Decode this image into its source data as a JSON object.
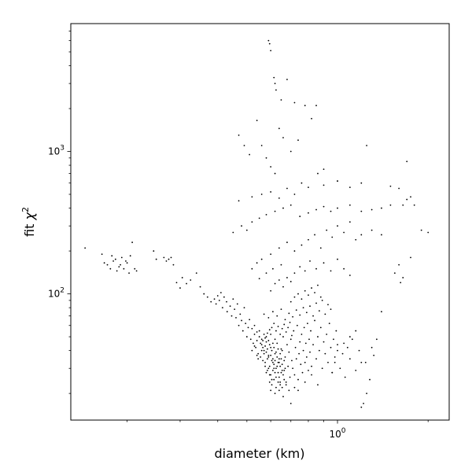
{
  "chart_data": {
    "type": "scatter",
    "title": "",
    "xlabel": "diameter (km)",
    "ylabel_prefix": "fit ",
    "ylabel_symbol": "χ",
    "ylabel_sup": "2",
    "xscale": "log",
    "yscale": "log",
    "xlim": [
      0.13,
      2.35
    ],
    "ylim": [
      13,
      7900
    ],
    "grid": false,
    "legend": "none",
    "marker_color": "#000000",
    "x_tick_labels": [
      {
        "value": 1.0,
        "base": "10",
        "exp": "0"
      }
    ],
    "y_tick_labels": [
      {
        "value": 100,
        "base": "10",
        "exp": "2"
      },
      {
        "value": 1000,
        "base": "10",
        "exp": "3"
      }
    ],
    "x_minor_ticks": [
      0.2,
      0.3,
      0.4,
      0.5,
      0.6,
      0.7,
      0.8,
      0.9,
      2.0
    ],
    "y_minor_ticks": [
      20,
      30,
      40,
      50,
      60,
      70,
      80,
      90,
      200,
      300,
      400,
      500,
      600,
      700,
      800,
      900,
      2000,
      3000,
      4000,
      5000,
      6000,
      7000
    ],
    "points": [
      [
        0.145,
        210
      ],
      [
        0.165,
        190
      ],
      [
        0.168,
        165
      ],
      [
        0.172,
        160
      ],
      [
        0.176,
        150
      ],
      [
        0.178,
        185
      ],
      [
        0.18,
        170
      ],
      [
        0.183,
        175
      ],
      [
        0.185,
        145
      ],
      [
        0.188,
        155
      ],
      [
        0.19,
        160
      ],
      [
        0.192,
        180
      ],
      [
        0.195,
        150
      ],
      [
        0.198,
        170
      ],
      [
        0.2,
        165
      ],
      [
        0.203,
        140
      ],
      [
        0.205,
        185
      ],
      [
        0.208,
        230
      ],
      [
        0.212,
        150
      ],
      [
        0.215,
        145
      ],
      [
        0.245,
        200
      ],
      [
        0.25,
        175
      ],
      [
        0.265,
        180
      ],
      [
        0.27,
        170
      ],
      [
        0.275,
        175
      ],
      [
        0.28,
        180
      ],
      [
        0.285,
        160
      ],
      [
        0.292,
        120
      ],
      [
        0.3,
        110
      ],
      [
        0.305,
        130
      ],
      [
        0.315,
        118
      ],
      [
        0.325,
        125
      ],
      [
        0.34,
        140
      ],
      [
        0.35,
        112
      ],
      [
        0.36,
        100
      ],
      [
        0.37,
        95
      ],
      [
        0.38,
        88
      ],
      [
        0.39,
        92
      ],
      [
        0.395,
        85
      ],
      [
        0.4,
        97
      ],
      [
        0.405,
        90
      ],
      [
        0.41,
        102
      ],
      [
        0.415,
        80
      ],
      [
        0.42,
        95
      ],
      [
        0.428,
        88
      ],
      [
        0.43,
        75
      ],
      [
        0.44,
        82
      ],
      [
        0.445,
        70
      ],
      [
        0.45,
        92
      ],
      [
        0.455,
        78
      ],
      [
        0.46,
        68
      ],
      [
        0.465,
        85
      ],
      [
        0.47,
        60
      ],
      [
        0.475,
        72
      ],
      [
        0.48,
        65
      ],
      [
        0.485,
        55
      ],
      [
        0.49,
        80
      ],
      [
        0.495,
        62
      ],
      [
        0.5,
        50
      ],
      [
        0.505,
        58
      ],
      [
        0.51,
        66
      ],
      [
        0.515,
        48
      ],
      [
        0.52,
        57
      ],
      [
        0.525,
        45
      ],
      [
        0.53,
        52
      ],
      [
        0.535,
        42
      ],
      [
        0.54,
        47
      ],
      [
        0.545,
        38
      ],
      [
        0.55,
        55
      ],
      [
        0.555,
        36
      ],
      [
        0.56,
        44
      ],
      [
        0.565,
        34
      ],
      [
        0.57,
        40
      ],
      [
        0.575,
        31
      ],
      [
        0.58,
        46
      ],
      [
        0.585,
        29
      ],
      [
        0.59,
        37
      ],
      [
        0.595,
        27
      ],
      [
        0.6,
        42
      ],
      [
        0.605,
        25
      ],
      [
        0.61,
        33
      ],
      [
        0.615,
        30
      ],
      [
        0.62,
        38
      ],
      [
        0.625,
        26
      ],
      [
        0.63,
        45
      ],
      [
        0.635,
        28
      ],
      [
        0.64,
        35
      ],
      [
        0.645,
        24
      ],
      [
        0.65,
        41
      ],
      [
        0.655,
        32
      ],
      [
        0.66,
        50
      ],
      [
        0.665,
        29
      ],
      [
        0.67,
        36
      ],
      [
        0.675,
        23
      ],
      [
        0.68,
        44
      ],
      [
        0.685,
        31
      ],
      [
        0.69,
        39
      ],
      [
        0.695,
        26
      ],
      [
        0.7,
        48
      ],
      [
        0.705,
        34
      ],
      [
        0.71,
        30
      ],
      [
        0.715,
        55
      ],
      [
        0.72,
        27
      ],
      [
        0.725,
        42
      ],
      [
        0.73,
        35
      ],
      [
        0.735,
        60
      ],
      [
        0.74,
        25
      ],
      [
        0.745,
        38
      ],
      [
        0.75,
        46
      ],
      [
        0.755,
        32
      ],
      [
        0.76,
        52
      ],
      [
        0.765,
        28
      ],
      [
        0.77,
        40
      ],
      [
        0.775,
        58
      ],
      [
        0.78,
        33
      ],
      [
        0.785,
        45
      ],
      [
        0.79,
        36
      ],
      [
        0.795,
        62
      ],
      [
        0.8,
        29
      ],
      [
        0.805,
        48
      ],
      [
        0.81,
        39
      ],
      [
        0.815,
        55
      ],
      [
        0.82,
        31
      ],
      [
        0.83,
        44
      ],
      [
        0.84,
        65
      ],
      [
        0.85,
        35
      ],
      [
        0.86,
        50
      ],
      [
        0.87,
        40
      ],
      [
        0.88,
        58
      ],
      [
        0.89,
        30
      ],
      [
        0.9,
        46
      ],
      [
        0.91,
        38
      ],
      [
        0.92,
        52
      ],
      [
        0.93,
        33
      ],
      [
        0.94,
        62
      ],
      [
        0.95,
        42
      ],
      [
        0.96,
        28
      ],
      [
        0.97,
        48
      ],
      [
        0.98,
        36
      ],
      [
        0.99,
        55
      ],
      [
        1.0,
        44
      ],
      [
        1.02,
        30
      ],
      [
        1.04,
        38
      ],
      [
        1.06,
        26
      ],
      [
        1.08,
        42
      ],
      [
        1.1,
        35
      ],
      [
        1.12,
        48
      ],
      [
        1.15,
        29
      ],
      [
        1.18,
        40
      ],
      [
        1.2,
        33
      ],
      [
        0.53,
        60
      ],
      [
        0.54,
        54
      ],
      [
        0.55,
        50
      ],
      [
        0.56,
        48
      ],
      [
        0.57,
        52
      ],
      [
        0.58,
        50
      ],
      [
        0.59,
        47
      ],
      [
        0.6,
        52
      ],
      [
        0.61,
        45
      ],
      [
        0.62,
        48
      ],
      [
        0.56,
        40
      ],
      [
        0.565,
        42
      ],
      [
        0.57,
        38
      ],
      [
        0.575,
        43
      ],
      [
        0.58,
        39
      ],
      [
        0.585,
        41
      ],
      [
        0.59,
        36
      ],
      [
        0.595,
        44
      ],
      [
        0.6,
        37
      ],
      [
        0.605,
        40
      ],
      [
        0.61,
        35
      ],
      [
        0.615,
        42
      ],
      [
        0.62,
        34
      ],
      [
        0.625,
        39
      ],
      [
        0.63,
        36
      ],
      [
        0.635,
        41
      ],
      [
        0.64,
        33
      ],
      [
        0.645,
        38
      ],
      [
        0.65,
        35
      ],
      [
        0.655,
        40
      ],
      [
        0.575,
        33
      ],
      [
        0.585,
        35
      ],
      [
        0.595,
        31
      ],
      [
        0.605,
        34
      ],
      [
        0.615,
        32
      ],
      [
        0.625,
        30
      ],
      [
        0.635,
        33
      ],
      [
        0.645,
        31
      ],
      [
        0.655,
        29
      ],
      [
        0.665,
        34
      ],
      [
        0.58,
        28
      ],
      [
        0.59,
        30
      ],
      [
        0.6,
        27
      ],
      [
        0.61,
        29
      ],
      [
        0.62,
        28
      ],
      [
        0.63,
        31
      ],
      [
        0.64,
        26
      ],
      [
        0.65,
        28
      ],
      [
        0.66,
        27
      ],
      [
        0.67,
        30
      ],
      [
        0.595,
        24
      ],
      [
        0.605,
        23
      ],
      [
        0.615,
        25
      ],
      [
        0.625,
        22
      ],
      [
        0.635,
        24
      ],
      [
        0.645,
        23
      ],
      [
        0.655,
        22
      ],
      [
        0.665,
        25
      ],
      [
        0.675,
        24
      ],
      [
        0.69,
        21
      ],
      [
        0.6,
        21
      ],
      [
        0.62,
        20
      ],
      [
        0.64,
        21
      ],
      [
        0.66,
        19
      ],
      [
        0.7,
        17
      ],
      [
        0.72,
        22
      ],
      [
        0.74,
        21
      ],
      [
        0.78,
        24
      ],
      [
        0.82,
        27
      ],
      [
        0.86,
        23
      ],
      [
        0.52,
        40
      ],
      [
        0.53,
        43
      ],
      [
        0.54,
        37
      ],
      [
        0.545,
        35
      ],
      [
        0.555,
        45
      ],
      [
        0.565,
        47
      ],
      [
        0.575,
        49
      ],
      [
        0.585,
        53
      ],
      [
        0.595,
        56
      ],
      [
        0.605,
        58
      ],
      [
        0.615,
        62
      ],
      [
        0.625,
        55
      ],
      [
        0.635,
        59
      ],
      [
        0.645,
        52
      ],
      [
        0.655,
        57
      ],
      [
        0.665,
        61
      ],
      [
        0.675,
        54
      ],
      [
        0.685,
        58
      ],
      [
        0.695,
        63
      ],
      [
        0.705,
        51
      ],
      [
        0.57,
        72
      ],
      [
        0.59,
        68
      ],
      [
        0.61,
        75
      ],
      [
        0.63,
        70
      ],
      [
        0.65,
        78
      ],
      [
        0.67,
        66
      ],
      [
        0.69,
        73
      ],
      [
        0.71,
        69
      ],
      [
        0.73,
        77
      ],
      [
        0.75,
        71
      ],
      [
        0.77,
        80
      ],
      [
        0.79,
        74
      ],
      [
        0.81,
        82
      ],
      [
        0.83,
        70
      ],
      [
        0.85,
        86
      ],
      [
        0.87,
        76
      ],
      [
        0.89,
        90
      ],
      [
        0.91,
        72
      ],
      [
        0.93,
        84
      ],
      [
        0.95,
        78
      ],
      [
        0.7,
        88
      ],
      [
        0.72,
        95
      ],
      [
        0.74,
        100
      ],
      [
        0.76,
        92
      ],
      [
        0.78,
        105
      ],
      [
        0.8,
        98
      ],
      [
        0.82,
        110
      ],
      [
        0.84,
        102
      ],
      [
        0.86,
        115
      ],
      [
        0.88,
        95
      ],
      [
        0.6,
        105
      ],
      [
        0.62,
        118
      ],
      [
        0.64,
        125
      ],
      [
        0.66,
        112
      ],
      [
        0.68,
        130
      ],
      [
        0.7,
        122
      ],
      [
        0.55,
        128
      ],
      [
        0.58,
        140
      ],
      [
        0.61,
        150
      ],
      [
        0.65,
        160
      ],
      [
        0.72,
        140
      ],
      [
        0.75,
        155
      ],
      [
        0.78,
        145
      ],
      [
        0.81,
        170
      ],
      [
        0.85,
        150
      ],
      [
        0.9,
        165
      ],
      [
        0.95,
        145
      ],
      [
        1.0,
        175
      ],
      [
        1.05,
        150
      ],
      [
        1.1,
        135
      ],
      [
        0.52,
        150
      ],
      [
        0.54,
        165
      ],
      [
        0.56,
        175
      ],
      [
        0.6,
        190
      ],
      [
        0.64,
        210
      ],
      [
        0.68,
        230
      ],
      [
        0.72,
        200
      ],
      [
        0.76,
        220
      ],
      [
        0.8,
        240
      ],
      [
        0.84,
        260
      ],
      [
        0.88,
        210
      ],
      [
        0.92,
        280
      ],
      [
        0.96,
        250
      ],
      [
        1.0,
        300
      ],
      [
        1.05,
        270
      ],
      [
        1.1,
        320
      ],
      [
        1.15,
        240
      ],
      [
        1.2,
        260
      ],
      [
        1.3,
        280
      ],
      [
        1.4,
        260
      ],
      [
        0.45,
        270
      ],
      [
        0.48,
        300
      ],
      [
        0.5,
        280
      ],
      [
        0.52,
        320
      ],
      [
        0.55,
        340
      ],
      [
        0.58,
        360
      ],
      [
        0.62,
        380
      ],
      [
        0.66,
        400
      ],
      [
        0.7,
        420
      ],
      [
        0.75,
        350
      ],
      [
        0.8,
        370
      ],
      [
        0.85,
        390
      ],
      [
        0.9,
        410
      ],
      [
        0.95,
        380
      ],
      [
        1.0,
        400
      ],
      [
        1.1,
        420
      ],
      [
        1.2,
        380
      ],
      [
        1.3,
        390
      ],
      [
        1.4,
        400
      ],
      [
        1.5,
        420
      ],
      [
        0.47,
        450
      ],
      [
        0.52,
        480
      ],
      [
        0.56,
        500
      ],
      [
        0.6,
        520
      ],
      [
        0.64,
        470
      ],
      [
        0.68,
        550
      ],
      [
        0.72,
        500
      ],
      [
        0.76,
        600
      ],
      [
        0.8,
        560
      ],
      [
        0.9,
        580
      ],
      [
        1.0,
        620
      ],
      [
        1.1,
        560
      ],
      [
        1.2,
        600
      ],
      [
        1.5,
        570
      ],
      [
        1.6,
        550
      ],
      [
        1.7,
        460
      ],
      [
        1.75,
        480
      ],
      [
        1.8,
        420
      ],
      [
        1.9,
        280
      ],
      [
        2.0,
        270
      ],
      [
        0.47,
        1300
      ],
      [
        0.49,
        1100
      ],
      [
        0.51,
        950
      ],
      [
        0.54,
        1650
      ],
      [
        0.56,
        1100
      ],
      [
        0.58,
        900
      ],
      [
        0.6,
        780
      ],
      [
        0.62,
        700
      ],
      [
        0.64,
        1450
      ],
      [
        0.66,
        1250
      ],
      [
        0.7,
        1000
      ],
      [
        0.74,
        1200
      ],
      [
        0.78,
        2100
      ],
      [
        0.82,
        1700
      ],
      [
        0.86,
        700
      ],
      [
        0.9,
        750
      ],
      [
        1.0,
        620
      ],
      [
        1.25,
        1100
      ],
      [
        1.7,
        850
      ],
      [
        1.55,
        140
      ],
      [
        0.59,
        6000
      ],
      [
        0.595,
        5700
      ],
      [
        0.6,
        5100
      ],
      [
        0.615,
        3300
      ],
      [
        0.62,
        3000
      ],
      [
        0.625,
        2700
      ],
      [
        0.65,
        2300
      ],
      [
        0.68,
        3200
      ],
      [
        0.72,
        2200
      ],
      [
        0.85,
        2100
      ],
      [
        1.65,
        420
      ],
      [
        1.75,
        180
      ],
      [
        1.6,
        160
      ],
      [
        1.65,
        130
      ],
      [
        1.62,
        120
      ],
      [
        1.4,
        75
      ],
      [
        1.35,
        48
      ],
      [
        1.3,
        42
      ],
      [
        1.32,
        37
      ],
      [
        1.28,
        25
      ],
      [
        1.25,
        20
      ],
      [
        1.22,
        17
      ],
      [
        1.2,
        16
      ],
      [
        1.24,
        33
      ],
      [
        1.15,
        55
      ],
      [
        1.1,
        50
      ],
      [
        1.05,
        45
      ],
      [
        1.0,
        40
      ],
      [
        0.98,
        33
      ],
      [
        0.96,
        28
      ]
    ]
  }
}
